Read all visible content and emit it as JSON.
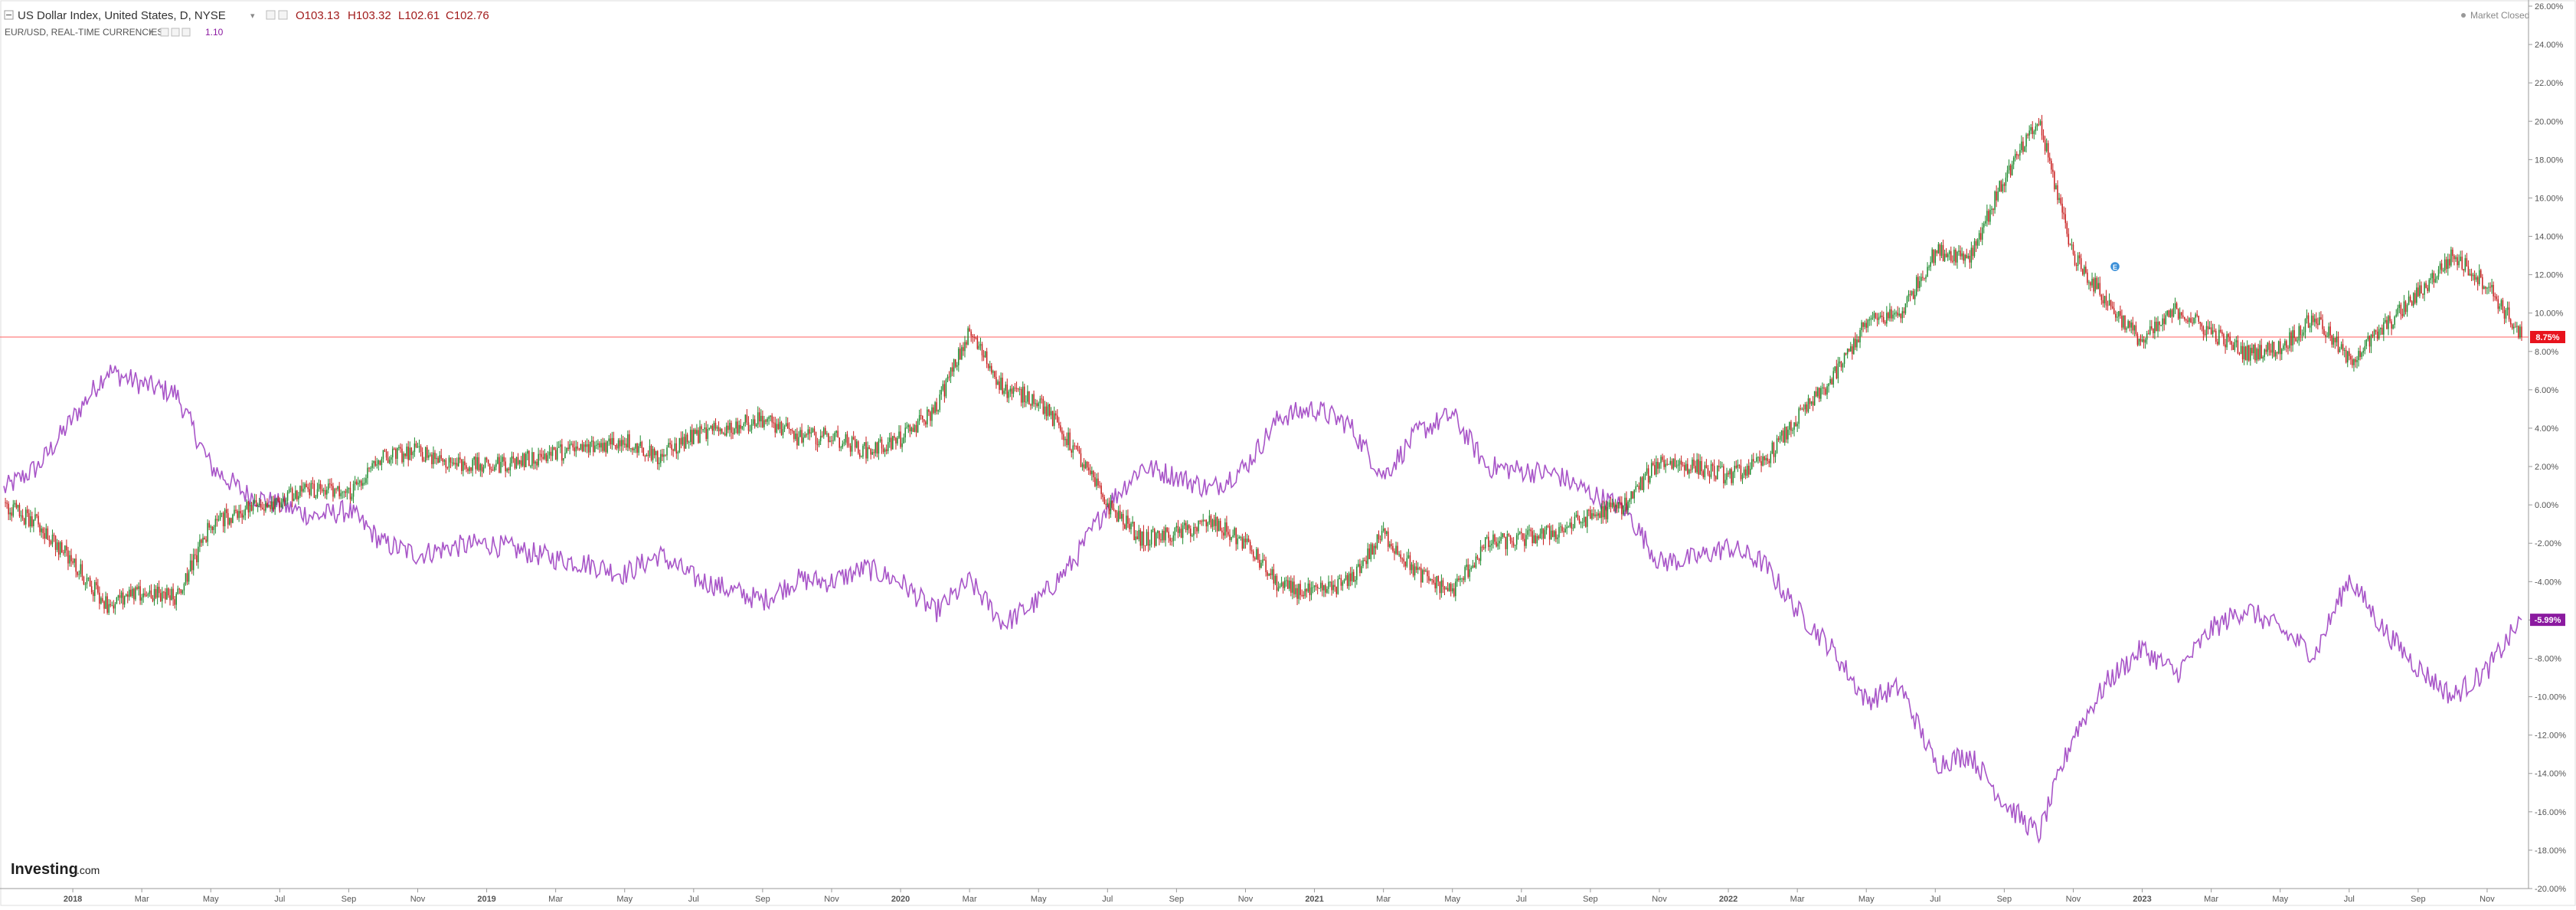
{
  "legend": {
    "main": {
      "title": "US Dollar Index, United States, D, NYSE",
      "open": "O103.13",
      "high": "H103.32",
      "low": "L102.61",
      "close": "C102.76"
    },
    "compare": {
      "title": "EUR/USD, REAL-TIME CURRENCIES",
      "value": "1.10"
    }
  },
  "status": {
    "market": "Market Closed"
  },
  "logo": {
    "text": "Investing",
    "suffix": ".com"
  },
  "colors": {
    "up": "#1e8a2e",
    "down": "#c81e1e",
    "compare_line": "#a855c8",
    "price_line": "#ff7f7f",
    "price_badge": "#e8131d",
    "compare_badge": "#8b1aa0",
    "axis_text": "#555555",
    "grid": "#eeeeee"
  },
  "chart_data": {
    "type": "line",
    "y_unit": "percent change",
    "ylim": [
      -20,
      26
    ],
    "y_ticks": [
      "26.00%",
      "24.00%",
      "22.00%",
      "20.00%",
      "18.00%",
      "16.00%",
      "14.00%",
      "12.00%",
      "10.00%",
      "8.00%",
      "6.00%",
      "4.00%",
      "2.00%",
      "0.00%",
      "-2.00%",
      "-4.00%",
      "-6.00%",
      "-8.00%",
      "-10.00%",
      "-12.00%",
      "-14.00%",
      "-16.00%",
      "-18.00%",
      "-20.00%"
    ],
    "x_ticks": [
      "2018",
      "Mar",
      "May",
      "Jul",
      "Sep",
      "Nov",
      "2019",
      "Mar",
      "May",
      "Jul",
      "Sep",
      "Nov",
      "2020",
      "Mar",
      "May",
      "Jul",
      "Sep",
      "Nov",
      "2021",
      "Mar",
      "May",
      "Jul",
      "Sep",
      "Nov",
      "2022",
      "Mar",
      "May",
      "Jul",
      "Sep",
      "Nov",
      "2023",
      "Mar",
      "May",
      "Jul",
      "Sep",
      "Nov"
    ],
    "series": [
      {
        "name": "US Dollar Index",
        "style": "candlestick",
        "last_label": "8.75%",
        "points": [
          [
            "2017-11",
            0.0
          ],
          [
            "2017-12",
            -1.0
          ],
          [
            "2018-01",
            -3.0
          ],
          [
            "2018-02",
            -5.2
          ],
          [
            "2018-03",
            -4.6
          ],
          [
            "2018-04",
            -4.8
          ],
          [
            "2018-05",
            -1.0
          ],
          [
            "2018-06",
            -0.2
          ],
          [
            "2018-07",
            0.3
          ],
          [
            "2018-08",
            0.8
          ],
          [
            "2018-09",
            0.6
          ],
          [
            "2018-10",
            2.5
          ],
          [
            "2018-11",
            2.8
          ],
          [
            "2018-12",
            2.2
          ],
          [
            "2019-01",
            2.0
          ],
          [
            "2019-02",
            2.3
          ],
          [
            "2019-03",
            2.7
          ],
          [
            "2019-04",
            3.0
          ],
          [
            "2019-05",
            3.4
          ],
          [
            "2019-06",
            2.5
          ],
          [
            "2019-07",
            3.6
          ],
          [
            "2019-08",
            4.0
          ],
          [
            "2019-09",
            4.5
          ],
          [
            "2019-10",
            3.5
          ],
          [
            "2019-11",
            3.6
          ],
          [
            "2019-12",
            2.8
          ],
          [
            "2020-01",
            3.4
          ],
          [
            "2020-02",
            5.0
          ],
          [
            "2020-03",
            9.0
          ],
          [
            "2020-04",
            6.0
          ],
          [
            "2020-05",
            5.5
          ],
          [
            "2020-06",
            3.0
          ],
          [
            "2020-07",
            0.0
          ],
          [
            "2020-08",
            -1.8
          ],
          [
            "2020-09",
            -1.5
          ],
          [
            "2020-10",
            -0.9
          ],
          [
            "2020-11",
            -2.0
          ],
          [
            "2020-12",
            -4.3
          ],
          [
            "2021-01",
            -4.6
          ],
          [
            "2021-02",
            -4.0
          ],
          [
            "2021-03",
            -1.5
          ],
          [
            "2021-04",
            -3.6
          ],
          [
            "2021-05",
            -4.5
          ],
          [
            "2021-06",
            -2.0
          ],
          [
            "2021-07",
            -1.8
          ],
          [
            "2021-08",
            -1.4
          ],
          [
            "2021-09",
            -0.6
          ],
          [
            "2021-10",
            0.0
          ],
          [
            "2021-11",
            2.3
          ],
          [
            "2021-12",
            2.0
          ],
          [
            "2022-01",
            1.5
          ],
          [
            "2022-02",
            2.2
          ],
          [
            "2022-03",
            4.5
          ],
          [
            "2022-04",
            6.5
          ],
          [
            "2022-05",
            9.5
          ],
          [
            "2022-06",
            10.0
          ],
          [
            "2022-07",
            13.2
          ],
          [
            "2022-08",
            13.0
          ],
          [
            "2022-09",
            17.0
          ],
          [
            "2022-10",
            20.0
          ],
          [
            "2022-11",
            13.0
          ],
          [
            "2022-12",
            10.5
          ],
          [
            "2023-01",
            8.5
          ],
          [
            "2023-02",
            10.2
          ],
          [
            "2023-03",
            9.0
          ],
          [
            "2023-04",
            7.9
          ],
          [
            "2023-05",
            8.2
          ],
          [
            "2023-06",
            9.8
          ],
          [
            "2023-07",
            7.5
          ],
          [
            "2023-08",
            9.2
          ],
          [
            "2023-09",
            11.0
          ],
          [
            "2023-10",
            13.0
          ],
          [
            "2023-11",
            11.5
          ],
          [
            "2023-12",
            8.75
          ]
        ]
      },
      {
        "name": "EUR/USD",
        "style": "line",
        "last_label": "-5.99%",
        "points": [
          [
            "2017-11",
            0.8
          ],
          [
            "2017-12",
            2.0
          ],
          [
            "2018-01",
            4.5
          ],
          [
            "2018-02",
            7.0
          ],
          [
            "2018-03",
            6.3
          ],
          [
            "2018-04",
            5.8
          ],
          [
            "2018-05",
            2.0
          ],
          [
            "2018-06",
            0.6
          ],
          [
            "2018-07",
            0.0
          ],
          [
            "2018-08",
            -0.6
          ],
          [
            "2018-09",
            -0.3
          ],
          [
            "2018-10",
            -2.0
          ],
          [
            "2018-11",
            -2.6
          ],
          [
            "2018-12",
            -2.2
          ],
          [
            "2019-01",
            -2.0
          ],
          [
            "2019-02",
            -2.4
          ],
          [
            "2019-03",
            -2.8
          ],
          [
            "2019-04",
            -3.1
          ],
          [
            "2019-05",
            -3.6
          ],
          [
            "2019-06",
            -2.6
          ],
          [
            "2019-07",
            -3.8
          ],
          [
            "2019-08",
            -4.4
          ],
          [
            "2019-09",
            -5.0
          ],
          [
            "2019-10",
            -3.9
          ],
          [
            "2019-11",
            -4.0
          ],
          [
            "2019-12",
            -3.3
          ],
          [
            "2020-01",
            -4.0
          ],
          [
            "2020-02",
            -5.6
          ],
          [
            "2020-03",
            -4.0
          ],
          [
            "2020-04",
            -6.2
          ],
          [
            "2020-05",
            -5.0
          ],
          [
            "2020-06",
            -3.0
          ],
          [
            "2020-07",
            0.0
          ],
          [
            "2020-08",
            2.0
          ],
          [
            "2020-09",
            1.5
          ],
          [
            "2020-10",
            0.8
          ],
          [
            "2020-11",
            2.0
          ],
          [
            "2020-12",
            4.6
          ],
          [
            "2021-01",
            5.0
          ],
          [
            "2021-02",
            4.2
          ],
          [
            "2021-03",
            1.5
          ],
          [
            "2021-04",
            3.8
          ],
          [
            "2021-05",
            4.7
          ],
          [
            "2021-06",
            2.0
          ],
          [
            "2021-07",
            1.8
          ],
          [
            "2021-08",
            1.6
          ],
          [
            "2021-09",
            0.6
          ],
          [
            "2021-10",
            -0.2
          ],
          [
            "2021-11",
            -3.0
          ],
          [
            "2021-12",
            -2.8
          ],
          [
            "2022-01",
            -2.2
          ],
          [
            "2022-02",
            -3.0
          ],
          [
            "2022-03",
            -5.5
          ],
          [
            "2022-04",
            -7.5
          ],
          [
            "2022-05",
            -10.2
          ],
          [
            "2022-06",
            -9.5
          ],
          [
            "2022-07",
            -13.5
          ],
          [
            "2022-08",
            -13.0
          ],
          [
            "2022-09",
            -15.5
          ],
          [
            "2022-10",
            -17.2
          ],
          [
            "2022-11",
            -12.0
          ],
          [
            "2022-12",
            -9.2
          ],
          [
            "2023-01",
            -7.5
          ],
          [
            "2023-02",
            -8.8
          ],
          [
            "2023-03",
            -6.5
          ],
          [
            "2023-04",
            -5.4
          ],
          [
            "2023-05",
            -6.5
          ],
          [
            "2023-06",
            -7.8
          ],
          [
            "2023-07",
            -3.8
          ],
          [
            "2023-08",
            -6.5
          ],
          [
            "2023-09",
            -8.5
          ],
          [
            "2023-10",
            -10.0
          ],
          [
            "2023-11",
            -8.6
          ],
          [
            "2023-12",
            -5.99
          ]
        ]
      }
    ],
    "reference_line": {
      "value": 8.75,
      "label": "8.75%"
    },
    "grid": false,
    "legend_position": "top-left"
  }
}
